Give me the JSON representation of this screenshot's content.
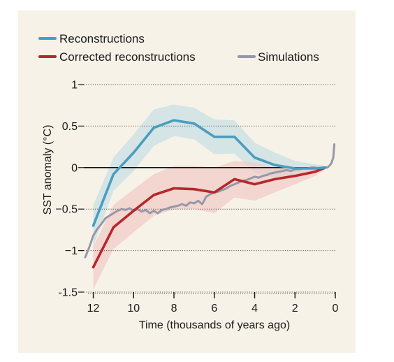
{
  "chart_data": {
    "type": "line",
    "title": "",
    "xlabel": "Time (thousands of years ago)",
    "ylabel": "SST anomaly (°C)",
    "xlim": [
      12.4,
      0
    ],
    "ylim": [
      -1.5,
      1
    ],
    "x_ticks": [
      12,
      10,
      8,
      6,
      4,
      2,
      0
    ],
    "y_ticks": [
      1,
      0.5,
      0,
      -0.5,
      -1,
      -1.5
    ],
    "y_tick_labels": [
      "1",
      "0.5",
      "0",
      "−0.5",
      "−1",
      "-1.5"
    ],
    "grid": "dotted horizontal",
    "legend": "top-left",
    "legend_entries": [
      {
        "label": "Reconstructions",
        "color": "#4b9dc0"
      },
      {
        "label": "Corrected reconstructions",
        "color": "#b5282c"
      },
      {
        "label": "Simulations",
        "color": "#9698a9"
      }
    ],
    "series": [
      {
        "name": "Reconstructions",
        "color": "#4b9dc0",
        "band_color": "#c9dfe3",
        "x": [
          12,
          11,
          10,
          9,
          8,
          7,
          6,
          5,
          4,
          3,
          2,
          1,
          0.5
        ],
        "values": [
          -0.7,
          -0.08,
          0.18,
          0.48,
          0.57,
          0.53,
          0.37,
          0.37,
          0.12,
          0.03,
          -0.01,
          -0.01,
          0
        ],
        "upper": [
          -0.45,
          0.12,
          0.4,
          0.7,
          0.76,
          0.72,
          0.58,
          0.57,
          0.3,
          0.18,
          0.08,
          0.04,
          0.02
        ],
        "lower": [
          -0.95,
          -0.28,
          -0.04,
          0.26,
          0.38,
          0.34,
          0.16,
          0.17,
          -0.06,
          -0.12,
          -0.1,
          -0.06,
          -0.02
        ]
      },
      {
        "name": "Corrected reconstructions",
        "color": "#b5282c",
        "band_color": "#f0cbc4",
        "x": [
          12,
          11,
          10,
          9,
          8,
          7,
          6,
          5,
          4,
          3,
          2,
          1,
          0.5
        ],
        "values": [
          -1.2,
          -0.72,
          -0.52,
          -0.33,
          -0.25,
          -0.26,
          -0.3,
          -0.14,
          -0.2,
          -0.14,
          -0.1,
          -0.05,
          0
        ],
        "upper": [
          -0.95,
          -0.45,
          -0.26,
          -0.08,
          0.02,
          0.02,
          0,
          0.08,
          0.06,
          0,
          -0.02,
          0.01,
          0.02
        ],
        "lower": [
          -1.47,
          -0.98,
          -0.78,
          -0.58,
          -0.5,
          -0.5,
          -0.55,
          -0.36,
          -0.4,
          -0.3,
          -0.2,
          -0.1,
          -0.02
        ]
      },
      {
        "name": "Simulations",
        "color": "#9698a9",
        "x": [
          12.4,
          12.2,
          12.0,
          11.8,
          11.6,
          11.4,
          11.2,
          11.0,
          10.8,
          10.6,
          10.4,
          10.2,
          10.0,
          9.8,
          9.6,
          9.4,
          9.2,
          9.0,
          8.8,
          8.6,
          8.4,
          8.2,
          8.0,
          7.8,
          7.6,
          7.4,
          7.2,
          7.0,
          6.8,
          6.6,
          6.4,
          6.2,
          6.0,
          5.8,
          5.6,
          5.4,
          5.2,
          5.0,
          4.8,
          4.6,
          4.4,
          4.2,
          4.0,
          3.8,
          3.6,
          3.4,
          3.2,
          3.0,
          2.8,
          2.6,
          2.4,
          2.2,
          2.0,
          1.8,
          1.6,
          1.4,
          1.2,
          1.0,
          0.8,
          0.6,
          0.4,
          0.3,
          0.2,
          0.1,
          0.05
        ],
        "values": [
          -1.08,
          -0.96,
          -0.82,
          -0.74,
          -0.68,
          -0.61,
          -0.58,
          -0.55,
          -0.52,
          -0.5,
          -0.51,
          -0.49,
          -0.52,
          -0.5,
          -0.53,
          -0.51,
          -0.55,
          -0.52,
          -0.55,
          -0.51,
          -0.5,
          -0.48,
          -0.47,
          -0.46,
          -0.44,
          -0.46,
          -0.42,
          -0.43,
          -0.4,
          -0.44,
          -0.35,
          -0.32,
          -0.3,
          -0.29,
          -0.27,
          -0.25,
          -0.22,
          -0.2,
          -0.18,
          -0.16,
          -0.15,
          -0.13,
          -0.11,
          -0.12,
          -0.1,
          -0.09,
          -0.07,
          -0.06,
          -0.05,
          -0.04,
          -0.03,
          -0.04,
          -0.02,
          -0.02,
          -0.01,
          -0.01,
          0.0,
          0.0,
          -0.01,
          0.0,
          0.0,
          0.02,
          0.05,
          0.12,
          0.28
        ]
      }
    ]
  }
}
